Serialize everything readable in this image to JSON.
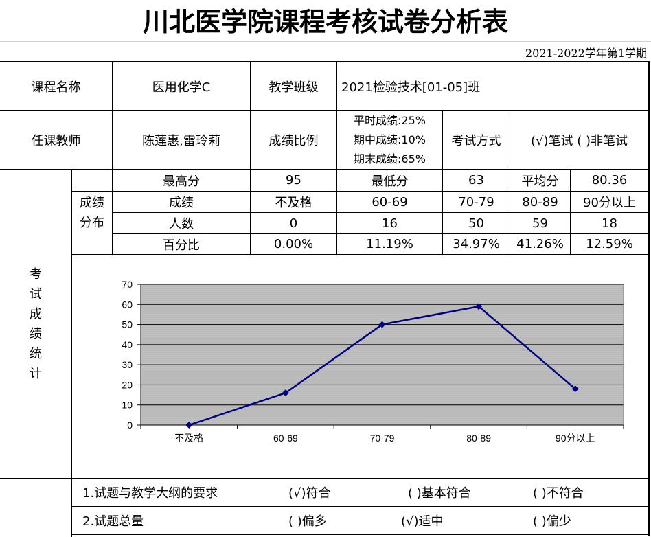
{
  "title": "川北医学院课程考核试卷分析表",
  "semester": "2021-2022学年第1学期",
  "course": {
    "name_label": "课程名称",
    "name": "医用化学C",
    "class_label": "教学班级",
    "class": "2021检验技术[01-05]班",
    "teacher_label": "任课教师",
    "teacher": "陈莲惠,雷玲莉",
    "ratio_label": "成绩比例",
    "ratio_lines": [
      "平时成绩:25%",
      "期中成绩:10%",
      "期末成绩:65%"
    ],
    "exam_mode_label": "考试方式",
    "exam_mode_options": "(√)笔试 ( )非笔试"
  },
  "stats": {
    "section_label": "考试成绩统计",
    "section_chars": [
      "考",
      "试",
      "成",
      "绩",
      "统",
      "计"
    ],
    "dist_chars": [
      "成绩",
      "分布"
    ],
    "max_label": "最高分",
    "max": "95",
    "min_label": "最低分",
    "min": "63",
    "avg_label": "平均分",
    "avg": "80.36",
    "grade_label": "成绩",
    "grades": [
      "不及格",
      "60-69",
      "70-79",
      "80-89",
      "90分以上"
    ],
    "count_label": "人数",
    "counts": [
      "0",
      "16",
      "50",
      "59",
      "18"
    ],
    "percent_label": "百分比",
    "percents": [
      "0.00%",
      "11.19%",
      "34.97%",
      "41.26%",
      "12.59%"
    ]
  },
  "chart_data": {
    "type": "line",
    "categories": [
      "不及格",
      "60-69",
      "70-79",
      "80-89",
      "90分以上"
    ],
    "series": [
      {
        "values": [
          0,
          16,
          50,
          59,
          18
        ]
      }
    ],
    "y_ticks": [
      "0",
      "10",
      "20",
      "30",
      "40",
      "50",
      "60",
      "70"
    ],
    "ylim": [
      0,
      70
    ],
    "grid": true,
    "colors": {
      "line": "#000080",
      "plot_bg": "#c0c0c0",
      "grid": "#808080"
    }
  },
  "analysis": {
    "q1": {
      "label": "1.试题与教学大纲的要求",
      "opt1": "(√)符合",
      "opt2": "( )基本符合",
      "opt3": "( )不符合"
    },
    "q2": {
      "label": "2.试题总量",
      "opt1": "( )偏多",
      "opt2": "(√)适中",
      "opt3": "( )偏少"
    }
  }
}
